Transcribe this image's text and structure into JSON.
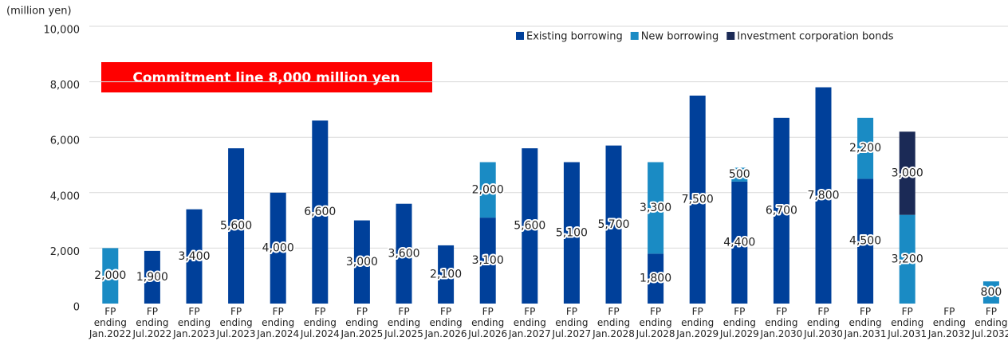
{
  "chart_data": {
    "type": "stacked_bar",
    "y_axis_label": "(million yen)",
    "annotation": "Commitment line 8,000 million yen",
    "categories": [
      "FP ending Jan.2022",
      "FP ending Jul.2022",
      "FP ending Jan.2023",
      "FP ending Jul.2023",
      "FP ending Jan.2024",
      "FP ending Jul.2024",
      "FP ending Jan.2025",
      "FP ending Jul.2025",
      "FP ending Jan.2026",
      "FP ending Jul.2026",
      "FP ending Jan.2027",
      "FP ending Jul.2027",
      "FP ending Jan.2028",
      "FP ending Jul.2028",
      "FP ending Jan.2029",
      "FP ending Jul.2029",
      "FP ending Jan.2030",
      "FP ending Jul.2030",
      "FP ending Jan.2031",
      "FP ending Jul.2031",
      "FP ending Jan.2032",
      "FP ending Jul.2032"
    ],
    "series": [
      {
        "name": "Existing borrowing",
        "color": "#00409a",
        "values": [
          null,
          1900,
          3400,
          5600,
          4000,
          6600,
          3000,
          3600,
          2100,
          3100,
          5600,
          5100,
          5700,
          1800,
          7500,
          4400,
          6700,
          7800,
          4500,
          null,
          null,
          null
        ],
        "value_labels": [
          null,
          "1,900",
          "3,400",
          "5,600",
          "4,000",
          "6,600",
          "3,000",
          "3,600",
          "2,100",
          "3,100",
          "5,600",
          "5,100",
          "5,700",
          "1,800",
          "7,500",
          "4,400",
          "6,700",
          "7,800",
          "4,500",
          null,
          null,
          null
        ]
      },
      {
        "name": "New borrowing",
        "color": "#1a8bc4",
        "values": [
          2000,
          null,
          null,
          null,
          null,
          null,
          null,
          null,
          null,
          2000,
          null,
          null,
          null,
          3300,
          null,
          500,
          null,
          null,
          2200,
          3200,
          null,
          800
        ],
        "value_labels": [
          "2,000",
          null,
          null,
          null,
          null,
          null,
          null,
          null,
          null,
          "2,000",
          null,
          null,
          null,
          "3,300",
          null,
          "500",
          null,
          null,
          "2,200",
          "3,200",
          null,
          "800"
        ]
      },
      {
        "name": "Investment corporation bonds",
        "color": "#1b2a56",
        "values": [
          null,
          null,
          null,
          null,
          null,
          null,
          null,
          null,
          null,
          null,
          null,
          null,
          null,
          null,
          null,
          null,
          null,
          null,
          null,
          3000,
          null,
          null
        ],
        "value_labels": [
          null,
          null,
          null,
          null,
          null,
          null,
          null,
          null,
          null,
          null,
          null,
          null,
          null,
          null,
          null,
          null,
          null,
          null,
          null,
          "3,000",
          null,
          null
        ]
      }
    ],
    "ylim": [
      0,
      10000
    ],
    "yticks": [
      0,
      {
        "value": 2000,
        "label": "2,000"
      },
      {
        "value": 4000,
        "label": "4,000"
      },
      {
        "value": 6000,
        "label": "6,000"
      },
      {
        "value": 8000,
        "label": "8,000"
      },
      {
        "value": 10000,
        "label": "10,000"
      }
    ],
    "grid": true
  }
}
